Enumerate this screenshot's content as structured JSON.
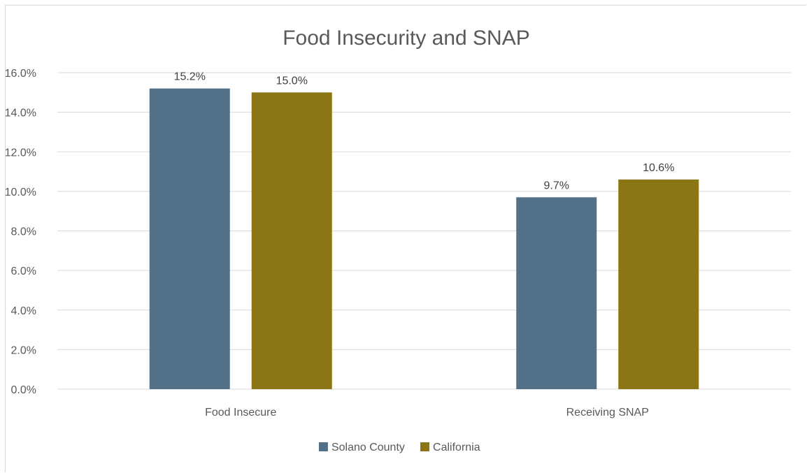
{
  "chart_data": {
    "type": "bar",
    "title": "Food Insecurity and SNAP",
    "categories": [
      "Food Insecure",
      "Receiving SNAP"
    ],
    "series": [
      {
        "name": "Solano County",
        "color": "#527087",
        "values": [
          15.2,
          9.7
        ],
        "labels": [
          "15.2%",
          "9.7%"
        ]
      },
      {
        "name": "California",
        "color": "#8b7616",
        "values": [
          15.0,
          10.6
        ],
        "labels": [
          "15.0%",
          "10.6%"
        ]
      }
    ],
    "ylim": [
      0,
      16
    ],
    "yticks": [
      0,
      2,
      4,
      6,
      8,
      10,
      12,
      14,
      16
    ],
    "ytick_labels": [
      "0.0%",
      "2.0%",
      "4.0%",
      "6.0%",
      "8.0%",
      "10.0%",
      "12.0%",
      "14.0%",
      "16.0%"
    ],
    "grid": true,
    "gridline_color": "#d9d9d9",
    "legend": "bottom-center"
  }
}
